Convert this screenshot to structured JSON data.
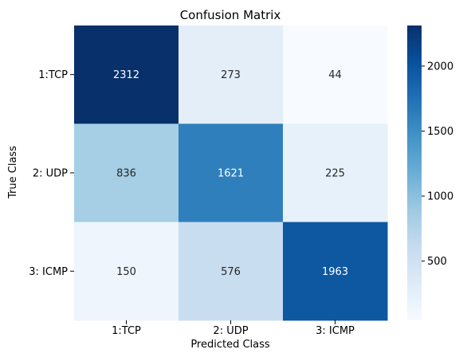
{
  "chart_data": {
    "type": "heatmap",
    "title": "Confusion Matrix",
    "xlabel": "Predicted Class",
    "ylabel": "True Class",
    "x_categories": [
      "1:TCP",
      "2: UDP",
      "3: ICMP"
    ],
    "y_categories": [
      "1:TCP",
      "2: UDP",
      "3: ICMP"
    ],
    "values": [
      [
        2312,
        273,
        44
      ],
      [
        836,
        1621,
        225
      ],
      [
        150,
        576,
        1963
      ]
    ],
    "colormap": "Blues",
    "color_range": [
      44,
      2312
    ],
    "colorbar": {
      "ticks": [
        500,
        1000,
        1500,
        2000
      ],
      "tick_labels": [
        "500",
        "1000",
        "1500",
        "2000"
      ]
    },
    "grid": false,
    "legend": "colorbar right"
  }
}
